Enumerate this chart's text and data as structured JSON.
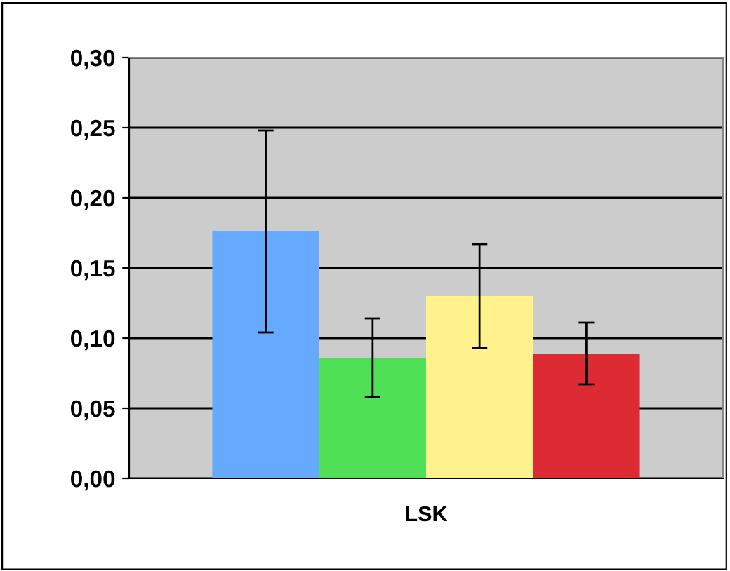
{
  "chart_data": {
    "type": "bar",
    "categories": [
      "LSK"
    ],
    "series": [
      {
        "color": "#66aaff",
        "values": [
          0.176
        ],
        "errors": [
          0.072
        ]
      },
      {
        "color": "#50e055",
        "values": [
          0.086
        ],
        "errors": [
          0.028
        ]
      },
      {
        "color": "#fff28c",
        "values": [
          0.13
        ],
        "errors": [
          0.037
        ]
      },
      {
        "color": "#dd2b33",
        "values": [
          0.089
        ],
        "errors": [
          0.022
        ]
      }
    ],
    "ylim": [
      0,
      0.3
    ],
    "yticks": [
      {
        "value": 0,
        "label": "0,00"
      },
      {
        "value": 0.05,
        "label": "0,05"
      },
      {
        "value": 0.1,
        "label": "0,10"
      },
      {
        "value": 0.15,
        "label": "0,15"
      },
      {
        "value": 0.2,
        "label": "0,20"
      },
      {
        "value": 0.25,
        "label": "0,25"
      },
      {
        "value": 0.3,
        "label": "0,30"
      }
    ],
    "grid": "y",
    "legend": false
  }
}
